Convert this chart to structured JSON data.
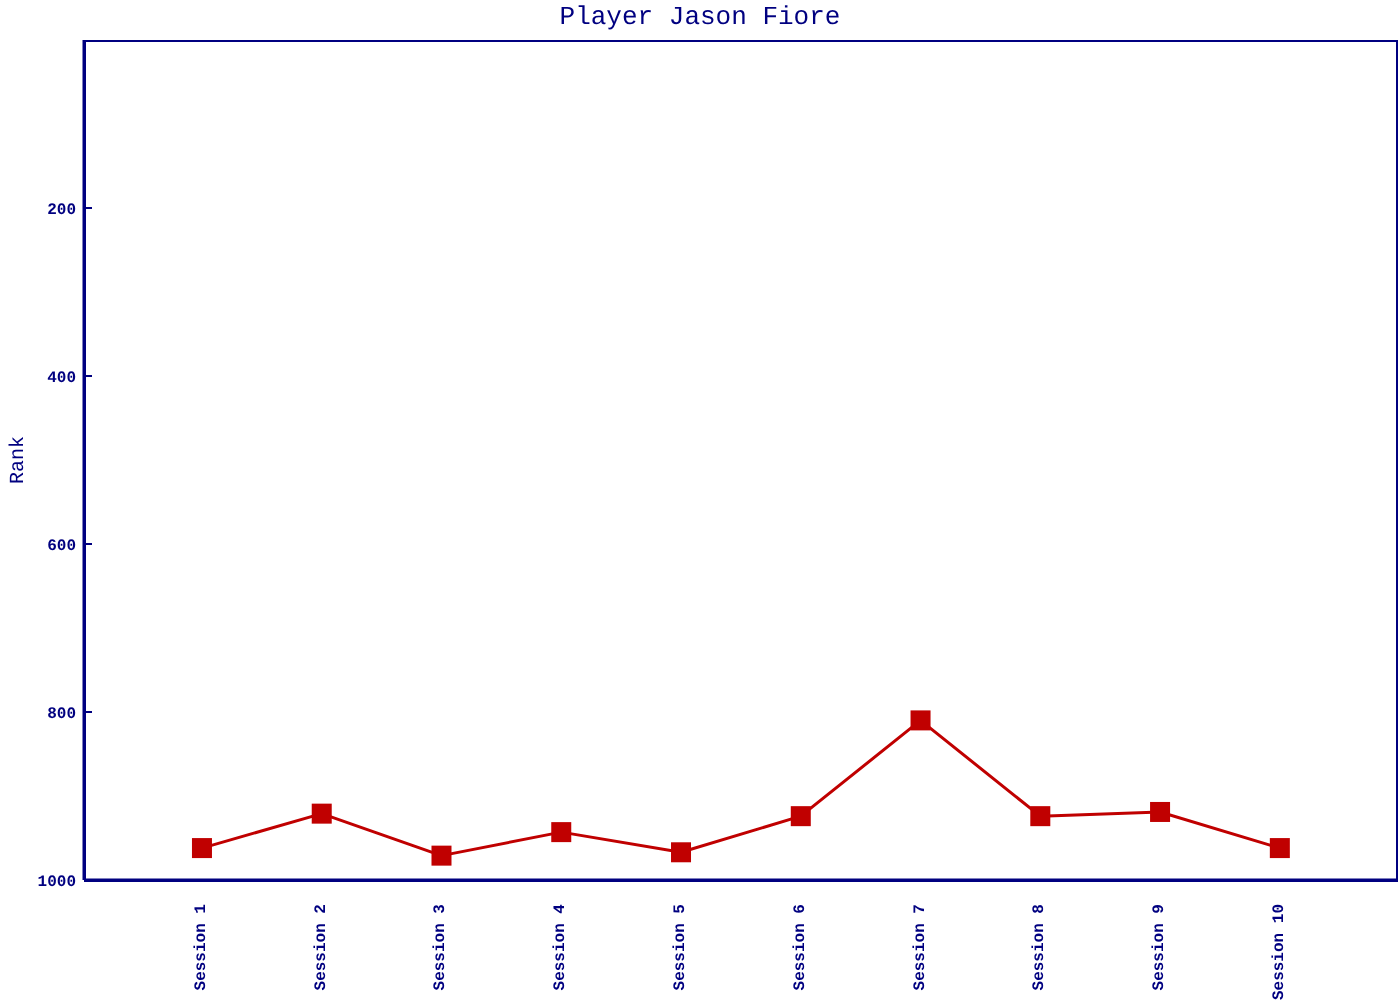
{
  "chart_data": {
    "type": "line",
    "title": "Player Jason Fiore",
    "ylabel": "Rank",
    "categories": [
      "Session 1",
      "Session 2",
      "Session 3",
      "Session 4",
      "Session 5",
      "Session 6",
      "Session 7",
      "Session 8",
      "Session 9",
      "Session 10"
    ],
    "series": [
      {
        "color": "#c00000",
        "values": [
          962,
          921,
          971,
          943,
          967,
          924,
          810,
          924,
          919,
          962
        ]
      }
    ],
    "ylim": [
      1000,
      0
    ],
    "yticks": [
      200,
      400,
      600,
      800,
      1000
    ],
    "grid": false,
    "legend": false,
    "marker": "square",
    "line_style": "solid"
  }
}
